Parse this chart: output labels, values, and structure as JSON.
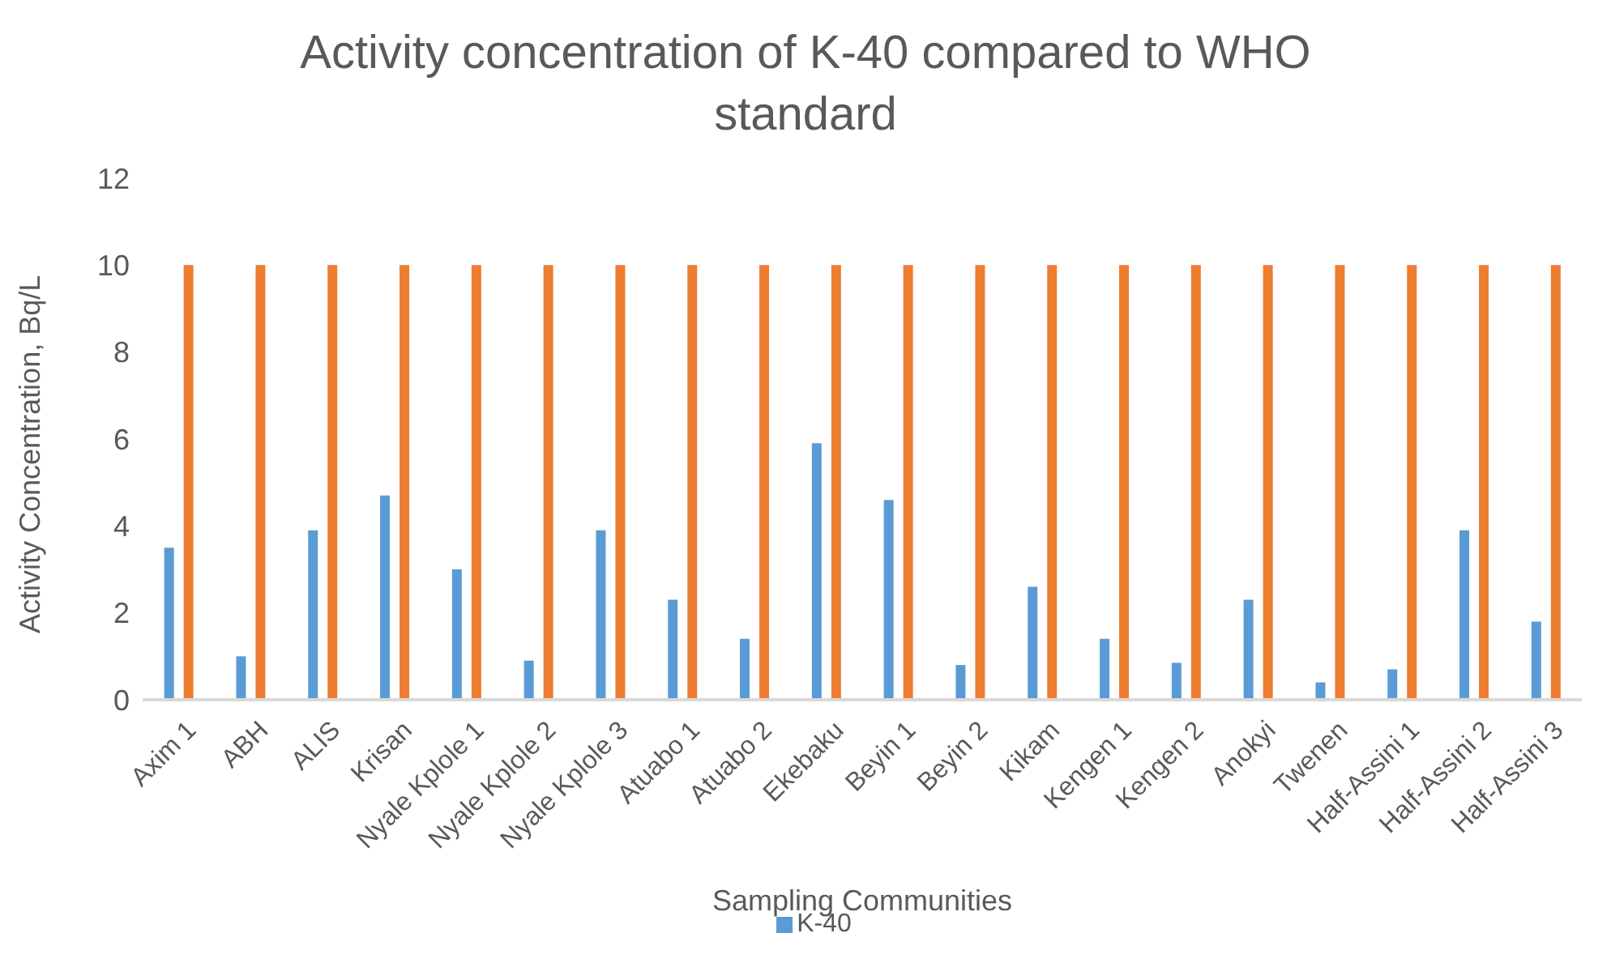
{
  "chart_data": {
    "type": "bar",
    "title": "Activity concentration of K-40 compared to WHO standard",
    "xlabel": "Sampling Communities",
    "ylabel": "Activity Concentration, Bq/L",
    "categories": [
      "Axim 1",
      "ABH",
      "ALIS",
      "Krisan",
      "Nyale Kplole 1",
      "Nyale Kplole 2",
      "Nyale Kplole 3",
      "Atuabo 1",
      "Atuabo 2",
      "Ekebaku",
      "Beyin 1",
      "Beyin 2",
      "Kikam",
      "Kengen 1",
      "Kengen 2",
      "Anokyi",
      "Twenen",
      "Half-Assini 1",
      "Half-Assini 2",
      "Half-Assini 3"
    ],
    "series": [
      {
        "name": "K-40",
        "color": "#5b9bd5",
        "values": [
          3.5,
          1.0,
          3.9,
          4.7,
          3.0,
          0.9,
          3.9,
          2.3,
          1.4,
          5.9,
          4.6,
          0.8,
          2.6,
          1.4,
          0.85,
          2.3,
          0.4,
          0.7,
          3.9,
          1.8
        ]
      },
      {
        "color": "#ed7d31",
        "values": [
          10,
          10,
          10,
          10,
          10,
          10,
          10,
          10,
          10,
          10,
          10,
          10,
          10,
          10,
          10,
          10,
          10,
          10,
          10,
          10
        ]
      }
    ],
    "ylim": [
      0,
      12
    ],
    "yticks": [
      0,
      2,
      4,
      6,
      8,
      10,
      12
    ],
    "grid": false,
    "legend": "bottom"
  }
}
